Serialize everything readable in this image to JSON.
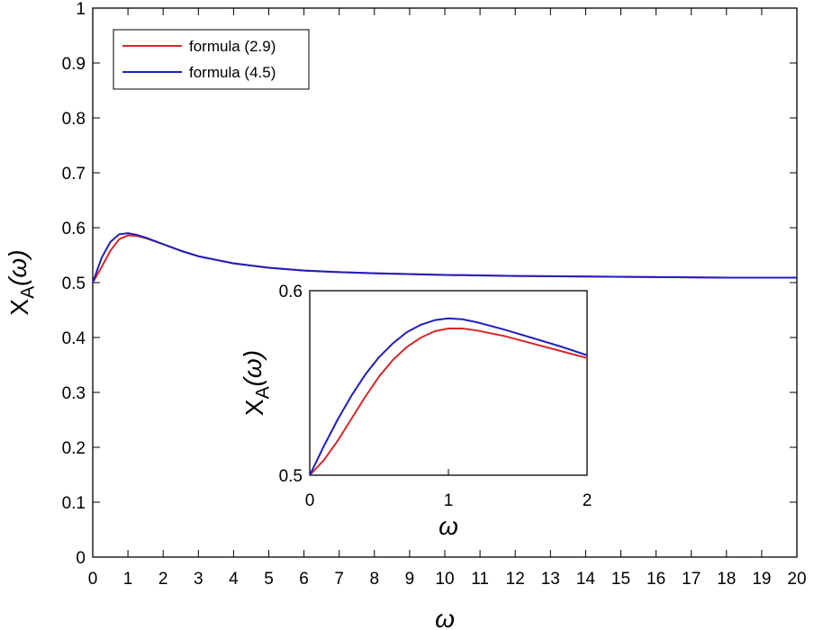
{
  "chart_data": [
    {
      "type": "line",
      "title": "",
      "xlabel": "ω",
      "ylabel": "X_A(ω)",
      "ylabel_main": "X",
      "ylabel_sub": "A",
      "ylabel_arg": "(ω)",
      "xlim": [
        0,
        20
      ],
      "ylim": [
        0,
        1
      ],
      "xticks": [
        0,
        1,
        2,
        3,
        4,
        5,
        6,
        7,
        8,
        9,
        10,
        11,
        12,
        13,
        14,
        15,
        16,
        17,
        18,
        19,
        20
      ],
      "yticks": [
        0,
        0.1,
        0.2,
        0.3,
        0.4,
        0.5,
        0.6,
        0.7,
        0.8,
        0.9,
        1
      ],
      "ytick_labels": [
        "0",
        "0.1",
        "0.2",
        "0.3",
        "0.4",
        "0.5",
        "0.6",
        "0.7",
        "0.8",
        "0.9",
        "1"
      ],
      "grid": false,
      "legend_position": "top-left",
      "series": [
        {
          "name": "formula (2.9)",
          "color": "#d62728",
          "x": [
            0,
            0.25,
            0.5,
            0.75,
            1,
            1.25,
            1.5,
            2,
            2.5,
            3,
            4,
            5,
            6,
            7,
            8,
            10,
            12,
            14,
            16,
            18,
            20
          ],
          "y": [
            0.5,
            0.528,
            0.558,
            0.579,
            0.586,
            0.585,
            0.581,
            0.57,
            0.558,
            0.548,
            0.535,
            0.527,
            0.522,
            0.519,
            0.517,
            0.514,
            0.512,
            0.511,
            0.51,
            0.509,
            0.509
          ]
        },
        {
          "name": "formula (4.5)",
          "color": "#1f1fbf",
          "x": [
            0,
            0.25,
            0.5,
            0.75,
            1,
            1.25,
            1.5,
            2,
            2.5,
            3,
            4,
            5,
            6,
            7,
            8,
            10,
            12,
            14,
            16,
            18,
            20
          ],
          "y": [
            0.5,
            0.545,
            0.574,
            0.588,
            0.59,
            0.587,
            0.582,
            0.57,
            0.558,
            0.548,
            0.535,
            0.527,
            0.522,
            0.519,
            0.517,
            0.514,
            0.512,
            0.511,
            0.51,
            0.509,
            0.509
          ]
        }
      ]
    },
    {
      "type": "line",
      "title": "",
      "xlabel": "ω",
      "ylabel": "X_A(ω)",
      "ylabel_main": "X",
      "ylabel_sub": "A",
      "ylabel_arg": "(ω)",
      "xlim": [
        0,
        2
      ],
      "ylim": [
        0.5,
        0.6
      ],
      "xticks": [
        0,
        1,
        2
      ],
      "yticks": [
        0.5,
        0.6
      ],
      "ytick_labels": [
        "0.5",
        "0.6"
      ],
      "grid": false,
      "series": [
        {
          "name": "formula (2.9)",
          "color": "#d62728",
          "x": [
            0,
            0.1,
            0.2,
            0.3,
            0.4,
            0.5,
            0.6,
            0.7,
            0.8,
            0.9,
            1.0,
            1.1,
            1.2,
            1.4,
            1.6,
            1.8,
            2.0
          ],
          "y": [
            0.5,
            0.508,
            0.5185,
            0.5305,
            0.5425,
            0.5535,
            0.5625,
            0.5695,
            0.5745,
            0.578,
            0.5795,
            0.5795,
            0.5785,
            0.5755,
            0.5715,
            0.5675,
            0.5635
          ]
        },
        {
          "name": "formula (4.5)",
          "color": "#1f1fbf",
          "x": [
            0,
            0.1,
            0.2,
            0.3,
            0.4,
            0.5,
            0.6,
            0.7,
            0.8,
            0.9,
            1.0,
            1.1,
            1.2,
            1.4,
            1.6,
            1.8,
            2.0
          ],
          "y": [
            0.5,
            0.5155,
            0.53,
            0.543,
            0.5545,
            0.564,
            0.5715,
            0.5775,
            0.5815,
            0.584,
            0.585,
            0.5845,
            0.583,
            0.579,
            0.5745,
            0.57,
            0.565
          ]
        }
      ]
    }
  ]
}
